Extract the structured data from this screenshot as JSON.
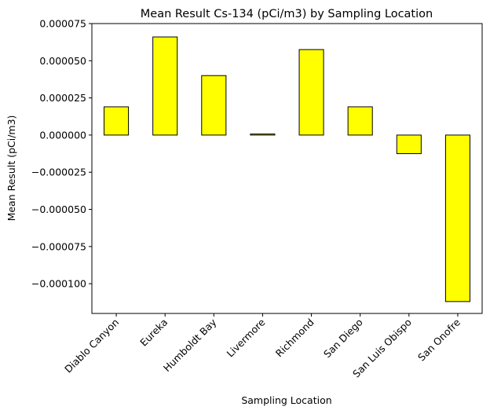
{
  "chart_data": {
    "type": "bar",
    "title": "Mean Result Cs-134 (pCi/m3) by Sampling Location",
    "xlabel": "Sampling Location",
    "ylabel": "Mean Result (pCi/m3)",
    "categories": [
      "Diablo Canyon",
      "Eureka",
      "Humboldt Bay",
      "Livermore",
      "Richmond",
      "San Diego",
      "San Luis Obispo",
      "San Onofre"
    ],
    "values": [
      1.9e-05,
      6.6e-05,
      4e-05,
      7e-07,
      5.75e-05,
      1.9e-05,
      -1.25e-05,
      -0.000112
    ],
    "ylim": [
      -0.00012,
      7.5e-05
    ],
    "yticks": [
      7.5e-05,
      5e-05,
      2.5e-05,
      0,
      -2.5e-05,
      -5e-05,
      -7.5e-05,
      -0.0001
    ],
    "ytick_labels": [
      "0.000075",
      "0.000050",
      "0.000025",
      "0.000000",
      "−0.000025",
      "−0.000050",
      "−0.000075",
      "−0.000100"
    ],
    "bar_color": "#ffff00",
    "edge_color": "#000000",
    "grid": false,
    "legend": "none"
  }
}
